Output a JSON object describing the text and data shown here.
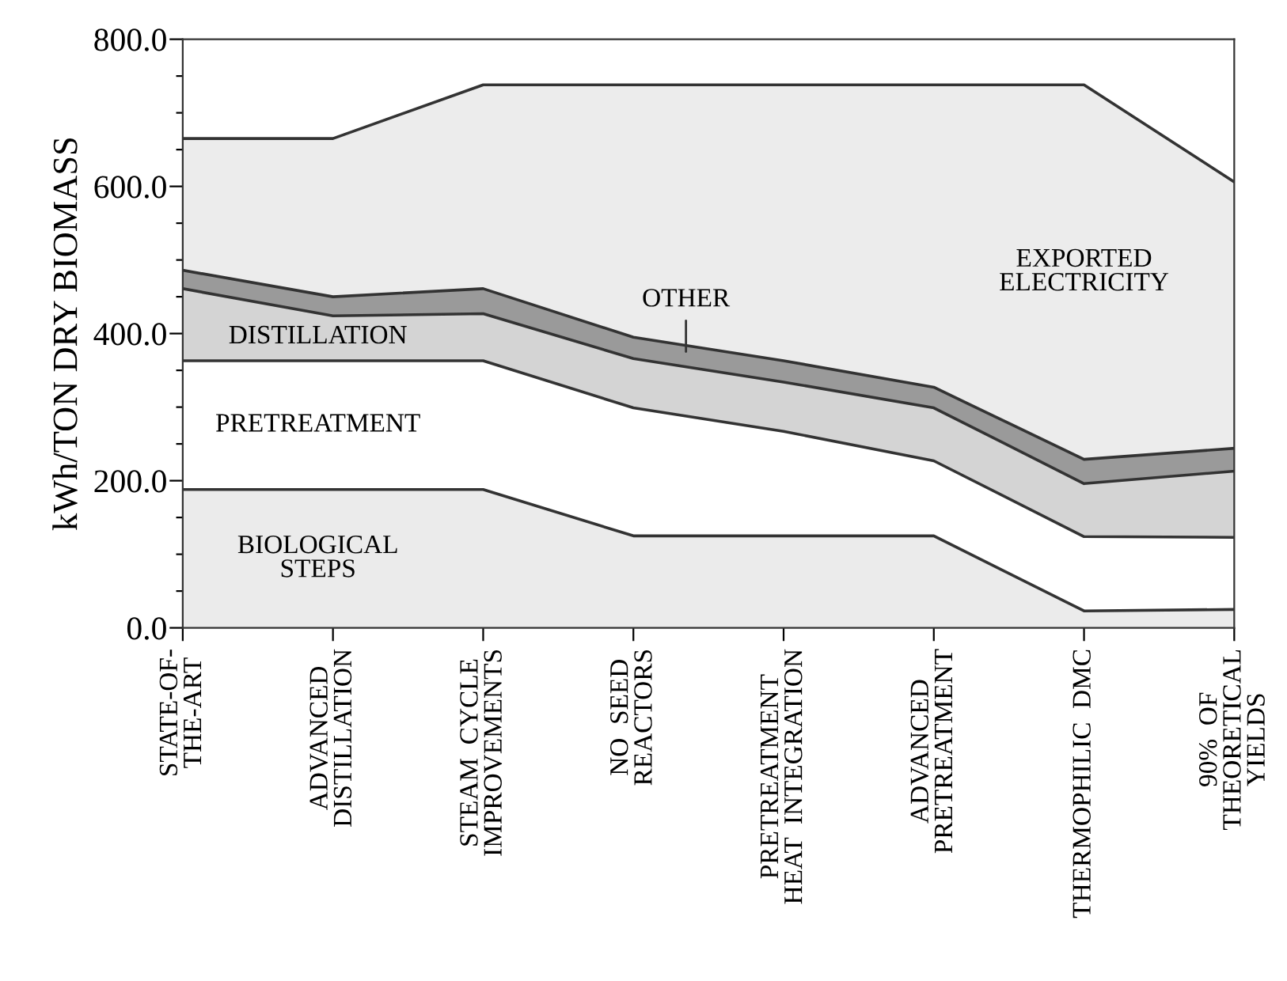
{
  "chart_data": {
    "type": "area",
    "stacked": true,
    "ylabel": "kWh/TON DRY BIOMASS",
    "categories": [
      "STATE-OF-\nTHE-ART",
      "ADVANCED\nDISTILLATION",
      "STEAM  CYCLE\nIMPROVEMENTS",
      "NO  SEED\nREACTORS",
      "PRETREATMENT\nHEAT  INTEGRATION",
      "ADVANCED\nPRETREATMENT",
      "THERMOPHILIC  DMC",
      "90%  OF\nTHEORETICAL\nYIELDS"
    ],
    "series": [
      {
        "name": "BIOLOGICAL\nSTEPS",
        "color": "#ebebeb",
        "values": [
          188,
          188,
          188,
          125,
          125,
          125,
          23,
          25
        ]
      },
      {
        "name": "PRETREATMENT",
        "color": "#ffffff",
        "values": [
          175,
          175,
          175,
          174,
          142,
          102,
          101,
          98
        ]
      },
      {
        "name": "DISTILLATION",
        "color": "#d4d4d4",
        "values": [
          98,
          61,
          64,
          67,
          67,
          72,
          72,
          90
        ]
      },
      {
        "name": "OTHER",
        "color": "#9a9a9a",
        "values": [
          25,
          26,
          34,
          29,
          29,
          28,
          33,
          31
        ]
      },
      {
        "name": "EXPORTED\nELECTRICITY",
        "color": "#ececec",
        "values": [
          179,
          215,
          277,
          343,
          375,
          411,
          509,
          362
        ]
      }
    ],
    "ylim": [
      0,
      800
    ],
    "yticks": [
      {
        "value": 0,
        "label": "0.0"
      },
      {
        "value": 50,
        "label": null
      },
      {
        "value": 100,
        "label": null
      },
      {
        "value": 150,
        "label": null
      },
      {
        "value": 200,
        "label": "200.0"
      },
      {
        "value": 250,
        "label": null
      },
      {
        "value": 300,
        "label": null
      },
      {
        "value": 350,
        "label": null
      },
      {
        "value": 400,
        "label": "400.0"
      },
      {
        "value": 450,
        "label": null
      },
      {
        "value": 500,
        "label": null
      },
      {
        "value": 550,
        "label": null
      },
      {
        "value": 600,
        "label": "600.0"
      },
      {
        "value": 650,
        "label": null
      },
      {
        "value": 700,
        "label": null
      },
      {
        "value": 750,
        "label": null
      },
      {
        "value": 800,
        "label": "800.0"
      }
    ],
    "grid": false,
    "legend": false
  }
}
